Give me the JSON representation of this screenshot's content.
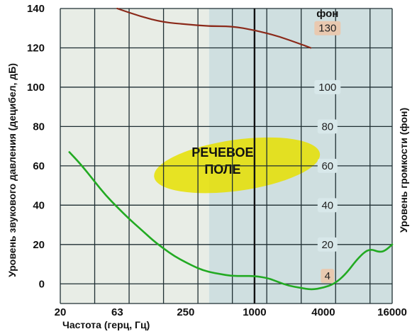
{
  "chart_data": {
    "type": "line",
    "title": "",
    "xlabel": "Частота  (герц, Гц)",
    "ylabel": "Уровень звукового давления  (децибел, дБ)",
    "ylabel_right": "Уровень громкости  (фон)",
    "x_scale": "log",
    "xlim": [
      20,
      16000
    ],
    "ylim": [
      -10,
      140
    ],
    "x_ticks": [
      20,
      63,
      250,
      1000,
      4000,
      16000
    ],
    "x_tick_labels": [
      "20",
      "63",
      "250",
      "1000",
      "4000",
      "16000"
    ],
    "y_ticks": [
      0,
      20,
      40,
      60,
      80,
      100,
      120,
      140
    ],
    "y_tick_labels": [
      "0",
      "20",
      "40",
      "60",
      "80",
      "100",
      "120",
      "140"
    ],
    "grid": true,
    "phon_scale": {
      "header": "фон",
      "at_frequency": 3000,
      "labels": [
        {
          "value": 130,
          "label": "130",
          "highlight": true
        },
        {
          "value": 100,
          "label": "100",
          "highlight": false
        },
        {
          "value": 80,
          "label": "80",
          "highlight": false
        },
        {
          "value": 60,
          "label": "60",
          "highlight": false
        },
        {
          "value": 40,
          "label": "40",
          "highlight": false
        },
        {
          "value": 20,
          "label": "20",
          "highlight": false
        },
        {
          "value": 4,
          "label": "4",
          "highlight": true
        }
      ]
    },
    "annotations": [
      {
        "text_lines": [
          "РЕЧЕВОЕ",
          "ПОЛЕ"
        ],
        "center": [
          700,
          61
        ],
        "color": "#e6e000"
      }
    ],
    "series": [
      {
        "color": "#8b2a1a",
        "points": [
          [
            63,
            140
          ],
          [
            100,
            136
          ],
          [
            160,
            133
          ],
          [
            250,
            132
          ],
          [
            400,
            131
          ],
          [
            630,
            131
          ],
          [
            1000,
            129
          ],
          [
            1600,
            126
          ],
          [
            2500,
            122
          ],
          [
            3100,
            120
          ]
        ]
      },
      {
        "color": "#22aa22",
        "points": [
          [
            24,
            67
          ],
          [
            30,
            61
          ],
          [
            40,
            52
          ],
          [
            50,
            45
          ],
          [
            63,
            39
          ],
          [
            80,
            33
          ],
          [
            100,
            28
          ],
          [
            130,
            22
          ],
          [
            160,
            18
          ],
          [
            200,
            14
          ],
          [
            250,
            11
          ],
          [
            315,
            8
          ],
          [
            400,
            6
          ],
          [
            500,
            5
          ],
          [
            630,
            4
          ],
          [
            800,
            4
          ],
          [
            1000,
            4
          ],
          [
            1300,
            3
          ],
          [
            1600,
            1
          ],
          [
            2000,
            -1
          ],
          [
            2500,
            -2
          ],
          [
            3150,
            -3
          ],
          [
            4000,
            -2
          ],
          [
            5000,
            0
          ],
          [
            6300,
            5
          ],
          [
            8000,
            13
          ],
          [
            10000,
            18
          ],
          [
            12500,
            16
          ],
          [
            14000,
            17
          ],
          [
            16000,
            20
          ]
        ]
      }
    ],
    "colors": {
      "background_left": "#e8ede6",
      "background_right": "#cfdfe0",
      "grid": "#1f2f33",
      "phon_highlight": "#e9c9b0",
      "phon_label_bg": "#d8e8ea"
    }
  }
}
